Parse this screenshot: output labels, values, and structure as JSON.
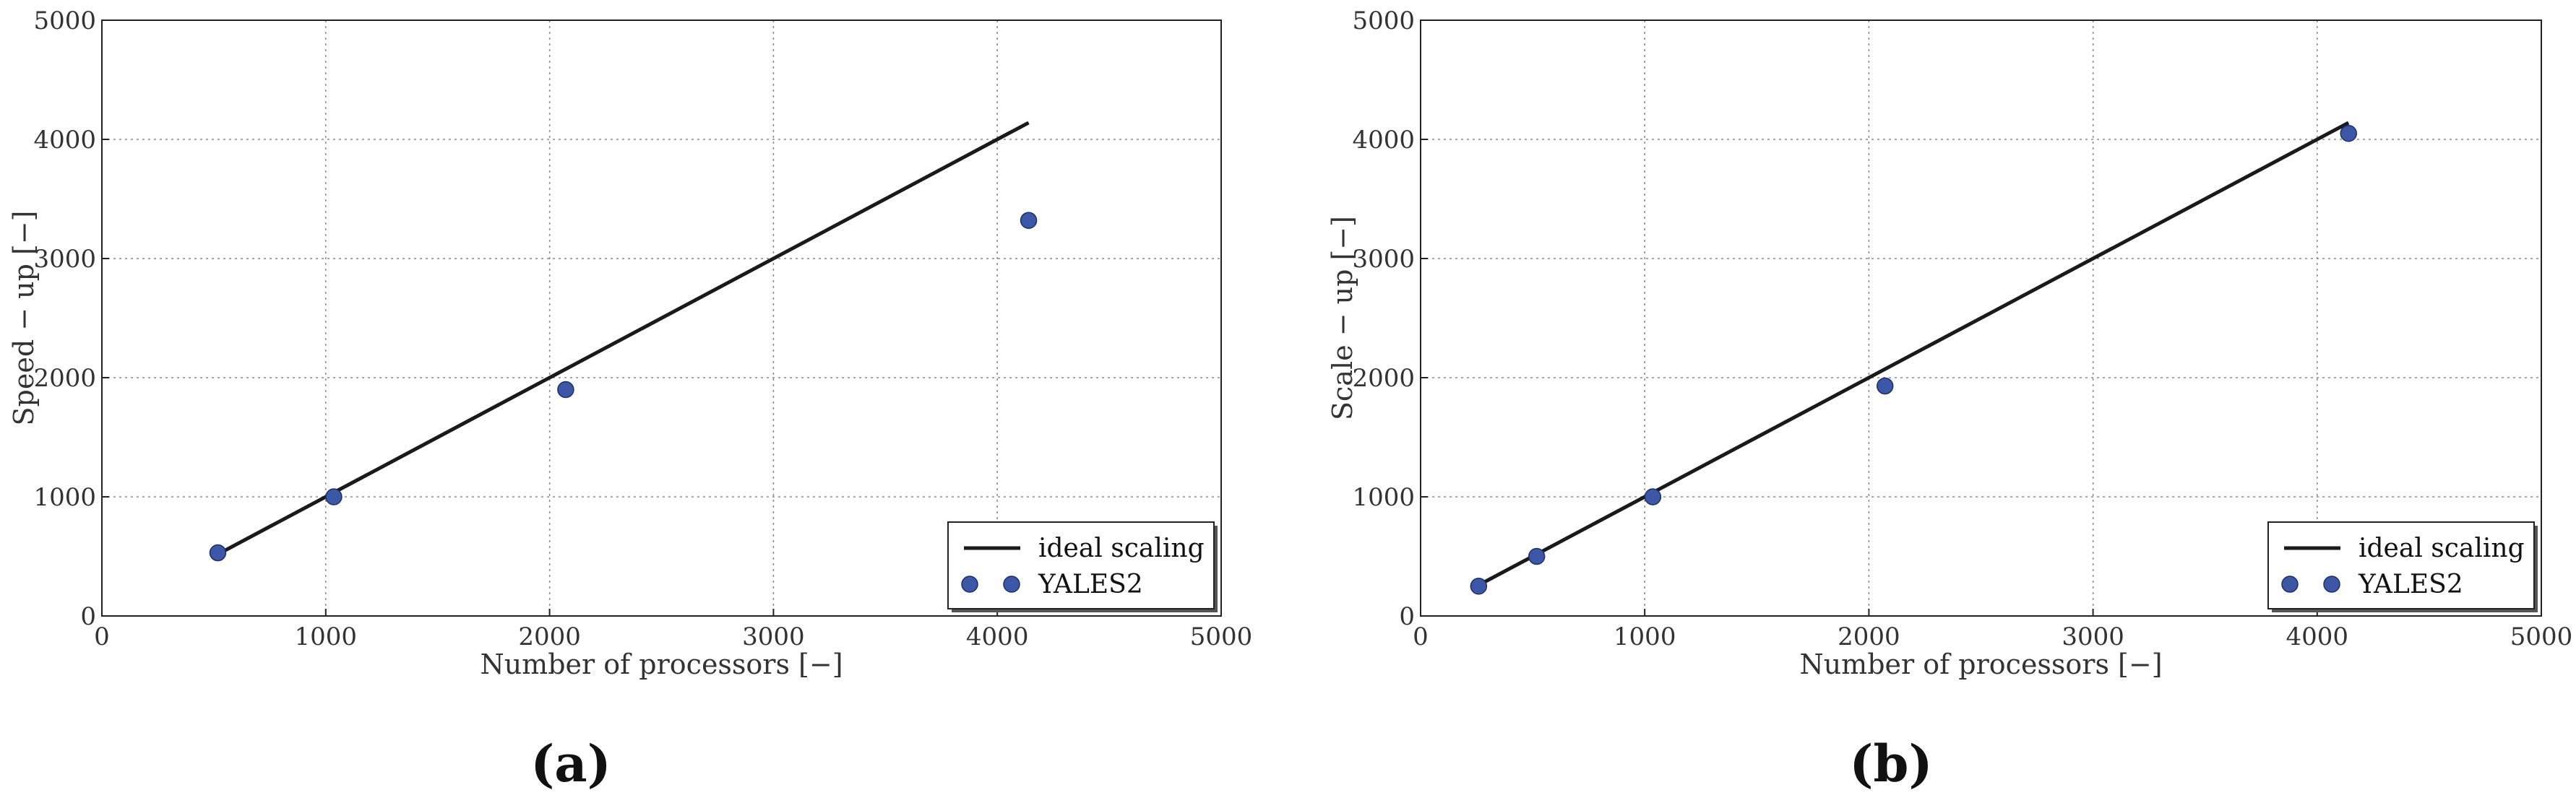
{
  "chart_data": [
    {
      "type": "line",
      "caption": "(a)",
      "xlabel": "Number of processors [−]",
      "ylabel": "Speed − up [−]",
      "xlim": [
        0,
        5000
      ],
      "ylim": [
        0,
        5000
      ],
      "xticks": [
        "0",
        "1000",
        "2000",
        "3000",
        "4000",
        "5000"
      ],
      "yticks": [
        "0",
        "1000",
        "2000",
        "3000",
        "4000",
        "5000"
      ],
      "grid": true,
      "legend_position": "lower-right",
      "series": [
        {
          "name": "ideal scaling",
          "kind": "line",
          "color": "#1a1a1a",
          "x": [
            518,
            4140
          ],
          "y": [
            518,
            4140
          ]
        },
        {
          "name": "YALES2",
          "kind": "scatter",
          "color": "#3b57a5",
          "x": [
            518,
            1036,
            2072,
            4140
          ],
          "y": [
            530,
            1000,
            1900,
            3320
          ]
        }
      ]
    },
    {
      "type": "line",
      "caption": "(b)",
      "xlabel": "Number of processors [−]",
      "ylabel": "Scale − up [−]",
      "xlim": [
        0,
        5000
      ],
      "ylim": [
        0,
        5000
      ],
      "xticks": [
        "0",
        "1000",
        "2000",
        "3000",
        "4000",
        "5000"
      ],
      "yticks": [
        "0",
        "1000",
        "2000",
        "3000",
        "4000",
        "5000"
      ],
      "grid": true,
      "legend_position": "lower-right",
      "series": [
        {
          "name": "ideal scaling",
          "kind": "line",
          "color": "#1a1a1a",
          "x": [
            259,
            4140
          ],
          "y": [
            259,
            4140
          ]
        },
        {
          "name": "YALES2",
          "kind": "scatter",
          "color": "#3b57a5",
          "x": [
            259,
            518,
            1036,
            2072,
            4140
          ],
          "y": [
            250,
            500,
            1000,
            1930,
            4050
          ]
        }
      ]
    }
  ]
}
